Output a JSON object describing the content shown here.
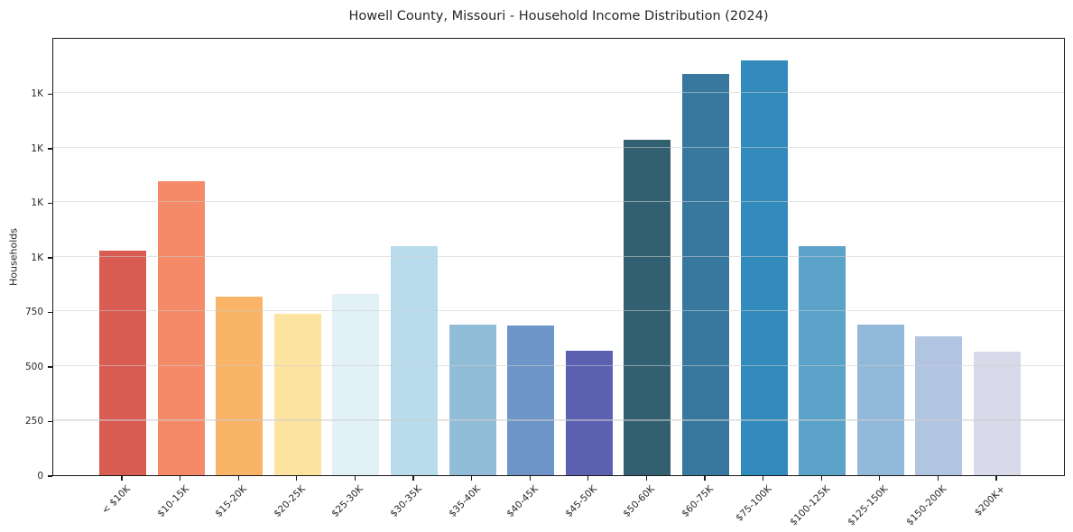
{
  "title": "Howell County, Missouri - Household Income Distribution (2024)",
  "chart_data": {
    "type": "bar",
    "title": "Howell County, Missouri - Household Income Distribution (2024)",
    "xlabel": "",
    "ylabel": "Households",
    "categories": [
      "< $10K",
      "$10-15K",
      "$15-20K",
      "$20-25K",
      "$25-30K",
      "$30-35K",
      "$35-40K",
      "$40-45K",
      "$45-50K",
      "$50-60K",
      "$60-75K",
      "$75-100K",
      "$100-125K",
      "$125-150K",
      "$150-200K",
      "$200K+"
    ],
    "values": [
      1030,
      1345,
      820,
      740,
      830,
      1050,
      690,
      685,
      570,
      1535,
      1840,
      1900,
      1050,
      690,
      635,
      565
    ],
    "bar_colors": [
      "#d85c52",
      "#f58a68",
      "#f9b468",
      "#fde3a0",
      "#e2f1f6",
      "#b8dcec",
      "#92bdd8",
      "#6e95c8",
      "#5c60b0",
      "#336070",
      "#38789f",
      "#338abc",
      "#5ba3c9",
      "#92b8da",
      "#b1c5e2",
      "#d8d9e9"
    ],
    "ylim": [
      0,
      2008
    ],
    "yticks": [
      {
        "value": 0,
        "label": "0"
      },
      {
        "value": 250,
        "label": "250"
      },
      {
        "value": 500,
        "label": "500"
      },
      {
        "value": 750,
        "label": "750"
      },
      {
        "value": 1000,
        "label": "1K"
      },
      {
        "value": 1250,
        "label": "1K"
      },
      {
        "value": 1500,
        "label": "1K"
      },
      {
        "value": 1750,
        "label": "1K"
      }
    ],
    "grid": "horizontal",
    "legend": "none"
  },
  "colors": {
    "background": "#ffffff",
    "spine": "#1a1a1a",
    "grid": "#e9e9e9",
    "text": "#262626"
  }
}
